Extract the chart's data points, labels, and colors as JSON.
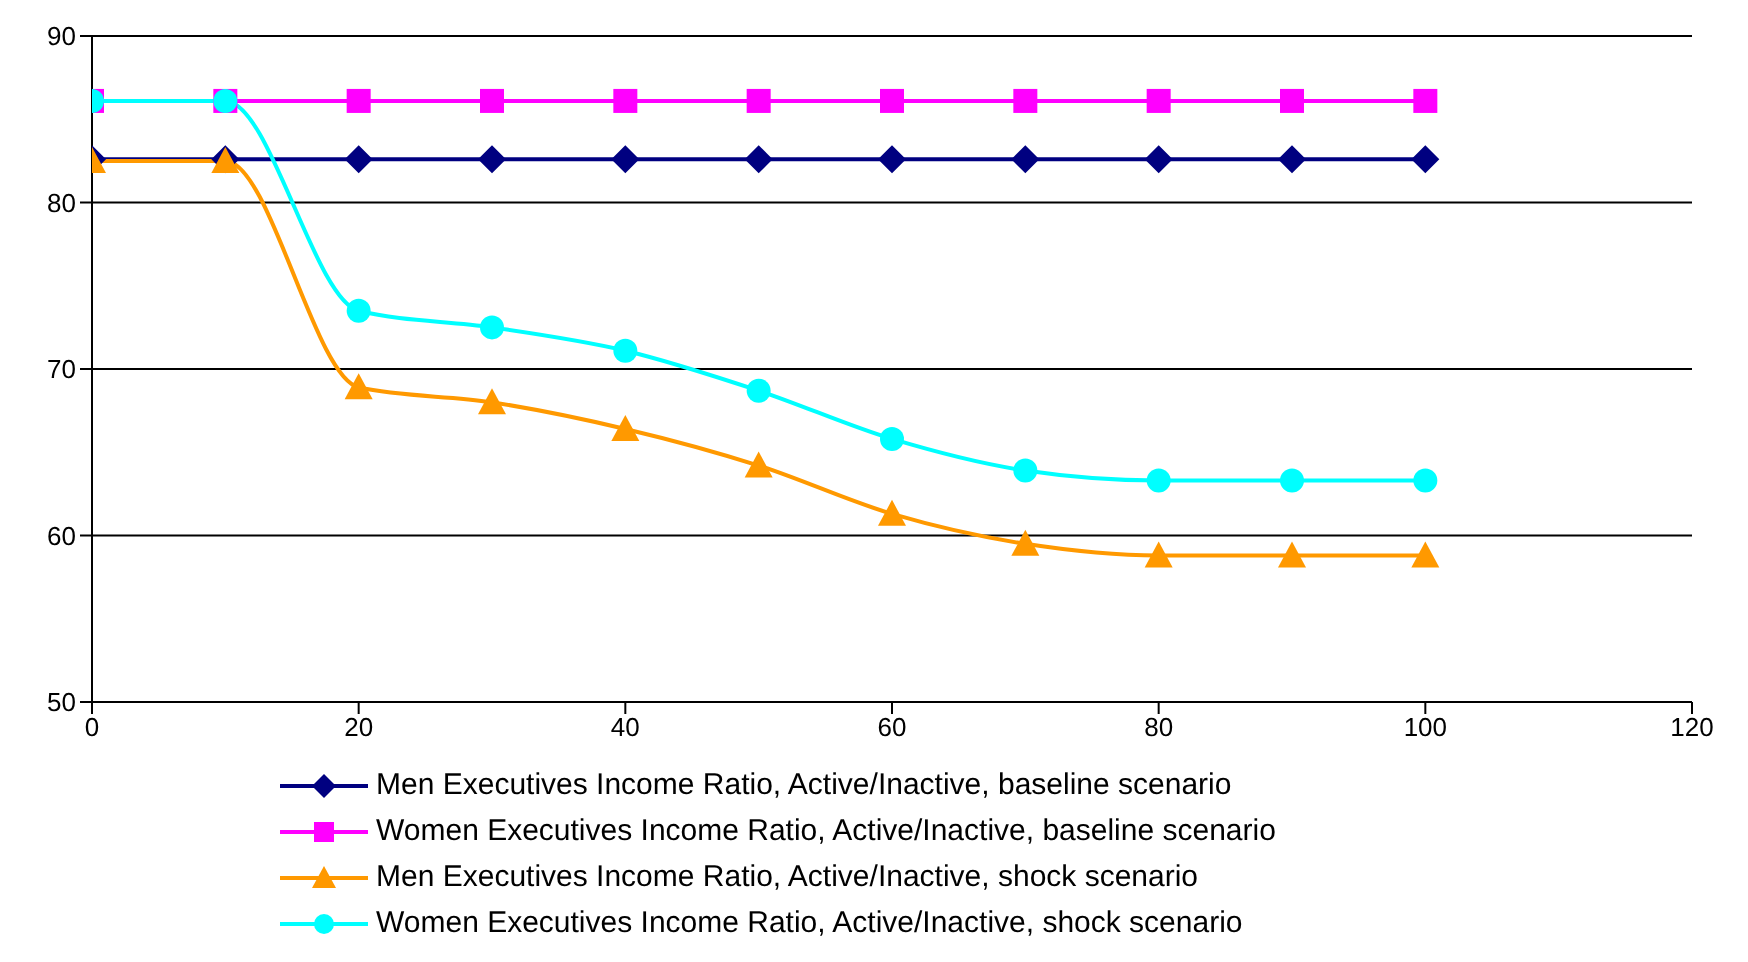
{
  "chart_data": {
    "type": "line",
    "x": [
      0,
      10,
      20,
      30,
      40,
      50,
      60,
      70,
      80,
      90,
      100
    ],
    "xlim": [
      0,
      120
    ],
    "xticks": [
      0,
      20,
      40,
      60,
      80,
      100,
      120
    ],
    "ylim": [
      50,
      90
    ],
    "yticks": [
      50,
      60,
      70,
      80,
      90
    ],
    "grid": "y",
    "legend": "bottom",
    "series": [
      {
        "name": "Men Executives Income Ratio, Active/Inactive, baseline scenario",
        "color": "#000080",
        "marker": "diamond",
        "values": [
          82.6,
          82.6,
          82.6,
          82.6,
          82.6,
          82.6,
          82.6,
          82.6,
          82.6,
          82.6,
          82.6
        ]
      },
      {
        "name": "Women Executives Income Ratio, Active/Inactive, baseline scenario",
        "color": "#ff00ff",
        "marker": "square",
        "values": [
          86.1,
          86.1,
          86.1,
          86.1,
          86.1,
          86.1,
          86.1,
          86.1,
          86.1,
          86.1,
          86.1
        ]
      },
      {
        "name": "Men Executives Income Ratio, Active/Inactive, shock scenario",
        "color": "#ff9900",
        "marker": "triangle",
        "values": [
          82.5,
          82.5,
          68.9,
          68.0,
          66.4,
          64.2,
          61.3,
          59.5,
          58.8,
          58.8,
          58.8
        ]
      },
      {
        "name": "Women Executives Income Ratio, Active/Inactive, shock scenario",
        "color": "#00ffff",
        "marker": "circle",
        "values": [
          86.1,
          86.1,
          73.5,
          72.5,
          71.1,
          68.7,
          65.8,
          63.9,
          63.3,
          63.3,
          63.3
        ]
      }
    ]
  }
}
